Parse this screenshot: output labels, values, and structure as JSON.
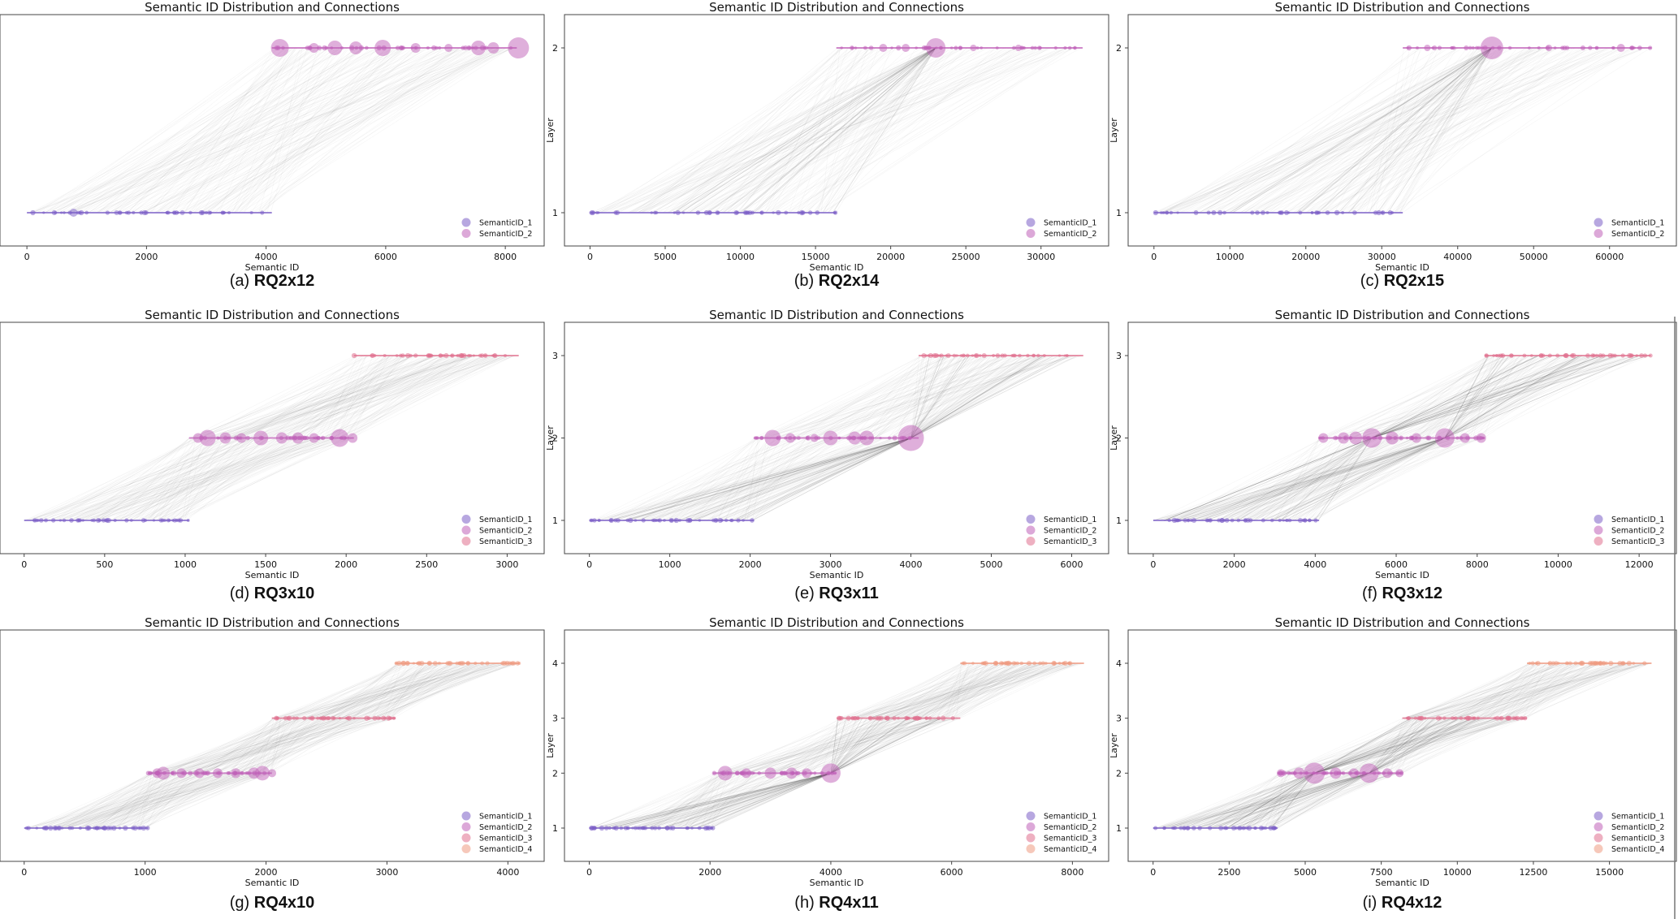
{
  "figure": {
    "colors": {
      "SemanticID_1": "#7b5fc7",
      "SemanticID_2": "#c060b8",
      "SemanticID_3": "#e0708e",
      "SemanticID_4": "#ef9a82",
      "connection": "#333333",
      "axis": "#555555"
    }
  },
  "chart_data": [
    {
      "id": "a",
      "type": "scatter",
      "title": "Semantic ID Distribution and Connections",
      "xlabel": "Semantic ID",
      "ylabel": "",
      "caption_prefix": "(a) ",
      "caption_name": "RQ2x12",
      "layers": 2,
      "show_y_ticks": false,
      "xlim": [
        -450,
        8650
      ],
      "xticks": [
        0,
        2000,
        4000,
        6000,
        8000
      ],
      "xticklabels": [
        "0",
        "2000",
        "4000",
        "6000",
        "8000"
      ],
      "series": [
        {
          "name": "SemanticID_1",
          "layer": 1,
          "range": [
            0,
            4096
          ]
        },
        {
          "name": "SemanticID_2",
          "layer": 2,
          "range": [
            4096,
            8192
          ]
        }
      ],
      "bubbles": [
        {
          "layer": 1,
          "x": 780,
          "r": 5
        },
        {
          "layer": 1,
          "x": 1500,
          "r": 3
        },
        {
          "layer": 1,
          "x": 2600,
          "r": 3
        },
        {
          "layer": 2,
          "x": 4230,
          "r": 11
        },
        {
          "layer": 2,
          "x": 4800,
          "r": 6
        },
        {
          "layer": 2,
          "x": 5150,
          "r": 9
        },
        {
          "layer": 2,
          "x": 5500,
          "r": 8
        },
        {
          "layer": 2,
          "x": 5950,
          "r": 10
        },
        {
          "layer": 2,
          "x": 6500,
          "r": 6
        },
        {
          "layer": 2,
          "x": 7050,
          "r": 5
        },
        {
          "layer": 2,
          "x": 7550,
          "r": 9
        },
        {
          "layer": 2,
          "x": 7800,
          "r": 7
        },
        {
          "layer": 2,
          "x": 8220,
          "r": 13
        }
      ],
      "hubs": [],
      "legend": [
        "SemanticID_1",
        "SemanticID_2"
      ]
    },
    {
      "id": "b",
      "type": "scatter",
      "title": "Semantic ID Distribution and Connections",
      "xlabel": "Semantic ID",
      "ylabel": "Layer",
      "caption_prefix": "(b) ",
      "caption_name": "RQ2x14",
      "layers": 2,
      "show_y_ticks": true,
      "yticks": [
        "1",
        "2"
      ],
      "xlim": [
        -1700,
        34500
      ],
      "xticks": [
        0,
        5000,
        10000,
        15000,
        20000,
        25000,
        30000
      ],
      "xticklabels": [
        "0",
        "5000",
        "10000",
        "15000",
        "20000",
        "25000",
        "30000"
      ],
      "series": [
        {
          "name": "SemanticID_1",
          "layer": 1,
          "range": [
            0,
            16384
          ]
        },
        {
          "name": "SemanticID_2",
          "layer": 2,
          "range": [
            16384,
            32768
          ]
        }
      ],
      "bubbles": [
        {
          "layer": 2,
          "x": 19500,
          "r": 5
        },
        {
          "layer": 2,
          "x": 21000,
          "r": 5
        },
        {
          "layer": 2,
          "x": 23000,
          "r": 12
        },
        {
          "layer": 2,
          "x": 25500,
          "r": 4
        },
        {
          "layer": 2,
          "x": 28500,
          "r": 4
        }
      ],
      "hubs": [
        {
          "layer": 2,
          "x": 23000
        }
      ],
      "legend": [
        "SemanticID_1",
        "SemanticID_2"
      ]
    },
    {
      "id": "c",
      "type": "scatter",
      "title": "Semantic ID Distribution and Connections",
      "xlabel": "Semantic ID",
      "ylabel": "Layer",
      "caption_prefix": "(c) ",
      "caption_name": "RQ2x15",
      "layers": 2,
      "show_y_ticks": true,
      "yticks": [
        "1",
        "2"
      ],
      "xlim": [
        -3400,
        68800
      ],
      "xticks": [
        0,
        10000,
        20000,
        30000,
        40000,
        50000,
        60000
      ],
      "xticklabels": [
        "0",
        "10000",
        "20000",
        "30000",
        "40000",
        "50000",
        "60000"
      ],
      "series": [
        {
          "name": "SemanticID_1",
          "layer": 1,
          "range": [
            0,
            32768
          ]
        },
        {
          "name": "SemanticID_2",
          "layer": 2,
          "range": [
            32768,
            65536
          ]
        }
      ],
      "bubbles": [
        {
          "layer": 2,
          "x": 36000,
          "r": 4
        },
        {
          "layer": 2,
          "x": 44500,
          "r": 14
        },
        {
          "layer": 2,
          "x": 52000,
          "r": 4
        },
        {
          "layer": 2,
          "x": 61500,
          "r": 5
        }
      ],
      "hubs": [
        {
          "layer": 2,
          "x": 44500
        }
      ],
      "legend": [
        "SemanticID_1",
        "SemanticID_2"
      ]
    },
    {
      "id": "d",
      "type": "scatter",
      "title": "Semantic ID Distribution and Connections",
      "xlabel": "Semantic ID",
      "ylabel": "",
      "caption_prefix": "(d) ",
      "caption_name": "RQ3x10",
      "layers": 3,
      "show_y_ticks": false,
      "xlim": [
        -150,
        3230
      ],
      "xticks": [
        0,
        500,
        1000,
        1500,
        2000,
        2500,
        3000
      ],
      "xticklabels": [
        "0",
        "500",
        "1000",
        "1500",
        "2000",
        "2500",
        "3000"
      ],
      "series": [
        {
          "name": "SemanticID_1",
          "layer": 1,
          "range": [
            0,
            1024
          ]
        },
        {
          "name": "SemanticID_2",
          "layer": 2,
          "range": [
            1024,
            2048
          ]
        },
        {
          "name": "SemanticID_3",
          "layer": 3,
          "range": [
            2048,
            3072
          ]
        }
      ],
      "bubbles": [
        {
          "layer": 2,
          "x": 1080,
          "r": 6
        },
        {
          "layer": 2,
          "x": 1140,
          "r": 10
        },
        {
          "layer": 2,
          "x": 1250,
          "r": 7
        },
        {
          "layer": 2,
          "x": 1350,
          "r": 6
        },
        {
          "layer": 2,
          "x": 1470,
          "r": 9
        },
        {
          "layer": 2,
          "x": 1600,
          "r": 7
        },
        {
          "layer": 2,
          "x": 1700,
          "r": 7
        },
        {
          "layer": 2,
          "x": 1800,
          "r": 6
        },
        {
          "layer": 2,
          "x": 1960,
          "r": 11
        },
        {
          "layer": 2,
          "x": 2040,
          "r": 6
        }
      ],
      "hubs": [],
      "legend": [
        "SemanticID_1",
        "SemanticID_2",
        "SemanticID_3"
      ]
    },
    {
      "id": "e",
      "type": "scatter",
      "title": "Semantic ID Distribution and Connections",
      "xlabel": "Semantic ID",
      "ylabel": "Layer",
      "caption_prefix": "(e) ",
      "caption_name": "RQ3x11",
      "layers": 3,
      "show_y_ticks": true,
      "yticks": [
        "1",
        "2",
        "3"
      ],
      "xlim": [
        -310,
        6460
      ],
      "xticks": [
        0,
        1000,
        2000,
        3000,
        4000,
        5000,
        6000
      ],
      "xticklabels": [
        "0",
        "1000",
        "2000",
        "3000",
        "4000",
        "5000",
        "6000"
      ],
      "series": [
        {
          "name": "SemanticID_1",
          "layer": 1,
          "range": [
            0,
            2048
          ]
        },
        {
          "name": "SemanticID_2",
          "layer": 2,
          "range": [
            2048,
            4096
          ]
        },
        {
          "name": "SemanticID_3",
          "layer": 3,
          "range": [
            4096,
            6144
          ]
        }
      ],
      "bubbles": [
        {
          "layer": 2,
          "x": 2280,
          "r": 10
        },
        {
          "layer": 2,
          "x": 2500,
          "r": 6
        },
        {
          "layer": 2,
          "x": 2800,
          "r": 5
        },
        {
          "layer": 2,
          "x": 3000,
          "r": 9
        },
        {
          "layer": 2,
          "x": 3300,
          "r": 8
        },
        {
          "layer": 2,
          "x": 3450,
          "r": 9
        },
        {
          "layer": 2,
          "x": 4000,
          "r": 16
        }
      ],
      "hubs": [
        {
          "layer": 2,
          "x": 4000
        }
      ],
      "legend": [
        "SemanticID_1",
        "SemanticID_2",
        "SemanticID_3"
      ]
    },
    {
      "id": "f",
      "type": "scatter",
      "title": "Semantic ID Distribution and Connections",
      "xlabel": "Semantic ID",
      "ylabel": "Layer",
      "caption_prefix": "(f) ",
      "caption_name": "RQ3x12",
      "layers": 3,
      "show_y_ticks": true,
      "yticks": [
        "1",
        "2",
        "3"
      ],
      "xlim": [
        -620,
        12920
      ],
      "xticks": [
        0,
        2000,
        4000,
        6000,
        8000,
        10000,
        12000
      ],
      "xticklabels": [
        "0",
        "2000",
        "4000",
        "6000",
        "8000",
        "10000",
        "12000"
      ],
      "series": [
        {
          "name": "SemanticID_1",
          "layer": 1,
          "range": [
            0,
            4096
          ]
        },
        {
          "name": "SemanticID_2",
          "layer": 2,
          "range": [
            4096,
            8192
          ]
        },
        {
          "name": "SemanticID_3",
          "layer": 3,
          "range": [
            8192,
            12288
          ]
        }
      ],
      "bubbles": [
        {
          "layer": 2,
          "x": 4200,
          "r": 6
        },
        {
          "layer": 2,
          "x": 4700,
          "r": 7
        },
        {
          "layer": 2,
          "x": 5000,
          "r": 8
        },
        {
          "layer": 2,
          "x": 5400,
          "r": 12
        },
        {
          "layer": 2,
          "x": 5900,
          "r": 8
        },
        {
          "layer": 2,
          "x": 6500,
          "r": 6
        },
        {
          "layer": 2,
          "x": 7200,
          "r": 12
        },
        {
          "layer": 2,
          "x": 7700,
          "r": 6
        },
        {
          "layer": 2,
          "x": 8100,
          "r": 6
        }
      ],
      "hubs": [
        {
          "layer": 2,
          "x": 5400
        },
        {
          "layer": 2,
          "x": 7200
        }
      ],
      "legend": [
        "SemanticID_1",
        "SemanticID_2",
        "SemanticID_3"
      ]
    },
    {
      "id": "g",
      "type": "scatter",
      "title": "Semantic ID Distribution and Connections",
      "xlabel": "Semantic ID",
      "ylabel": "",
      "caption_prefix": "(g) ",
      "caption_name": "RQ4x10",
      "layers": 4,
      "show_y_ticks": false,
      "xlim": [
        -200,
        4300
      ],
      "xticks": [
        0,
        1000,
        2000,
        3000,
        4000
      ],
      "xticklabels": [
        "0",
        "1000",
        "2000",
        "3000",
        "4000"
      ],
      "series": [
        {
          "name": "SemanticID_1",
          "layer": 1,
          "range": [
            0,
            1024
          ]
        },
        {
          "name": "SemanticID_2",
          "layer": 2,
          "range": [
            1024,
            2048
          ]
        },
        {
          "name": "SemanticID_3",
          "layer": 3,
          "range": [
            2048,
            3072
          ]
        },
        {
          "name": "SemanticID_4",
          "layer": 4,
          "range": [
            3072,
            4096
          ]
        }
      ],
      "bubbles": [
        {
          "layer": 2,
          "x": 1100,
          "r": 6
        },
        {
          "layer": 2,
          "x": 1150,
          "r": 8
        },
        {
          "layer": 2,
          "x": 1300,
          "r": 6
        },
        {
          "layer": 2,
          "x": 1450,
          "r": 6
        },
        {
          "layer": 2,
          "x": 1600,
          "r": 6
        },
        {
          "layer": 2,
          "x": 1750,
          "r": 6
        },
        {
          "layer": 2,
          "x": 1900,
          "r": 7
        },
        {
          "layer": 2,
          "x": 1970,
          "r": 9
        },
        {
          "layer": 2,
          "x": 2050,
          "r": 5
        }
      ],
      "hubs": [],
      "legend": [
        "SemanticID_1",
        "SemanticID_2",
        "SemanticID_3",
        "SemanticID_4"
      ]
    },
    {
      "id": "h",
      "type": "scatter",
      "title": "Semantic ID Distribution and Connections",
      "xlabel": "Semantic ID",
      "ylabel": "Layer",
      "caption_prefix": "(h) ",
      "caption_name": "RQ4x11",
      "layers": 4,
      "show_y_ticks": true,
      "yticks": [
        "1",
        "2",
        "3",
        "4"
      ],
      "xlim": [
        -410,
        8600
      ],
      "xticks": [
        0,
        2000,
        4000,
        6000,
        8000
      ],
      "xticklabels": [
        "0",
        "2000",
        "4000",
        "6000",
        "8000"
      ],
      "series": [
        {
          "name": "SemanticID_1",
          "layer": 1,
          "range": [
            0,
            2048
          ]
        },
        {
          "name": "SemanticID_2",
          "layer": 2,
          "range": [
            2048,
            4096
          ]
        },
        {
          "name": "SemanticID_3",
          "layer": 3,
          "range": [
            4096,
            6144
          ]
        },
        {
          "name": "SemanticID_4",
          "layer": 4,
          "range": [
            6144,
            8192
          ]
        }
      ],
      "bubbles": [
        {
          "layer": 2,
          "x": 2250,
          "r": 9
        },
        {
          "layer": 2,
          "x": 2600,
          "r": 6
        },
        {
          "layer": 2,
          "x": 3000,
          "r": 7
        },
        {
          "layer": 2,
          "x": 3350,
          "r": 7
        },
        {
          "layer": 2,
          "x": 3600,
          "r": 6
        },
        {
          "layer": 2,
          "x": 4000,
          "r": 12
        }
      ],
      "hubs": [
        {
          "layer": 2,
          "x": 4000
        }
      ],
      "legend": [
        "SemanticID_1",
        "SemanticID_2",
        "SemanticID_3",
        "SemanticID_4"
      ]
    },
    {
      "id": "i",
      "type": "scatter",
      "title": "Semantic ID Distribution and Connections",
      "xlabel": "Semantic ID",
      "ylabel": "Layer",
      "caption_prefix": "(i) ",
      "caption_name": "RQ4x12",
      "layers": 4,
      "show_y_ticks": true,
      "yticks": [
        "1",
        "2",
        "3",
        "4"
      ],
      "xlim": [
        -820,
        17200
      ],
      "xticks": [
        0,
        2500,
        5000,
        7500,
        10000,
        12500,
        15000
      ],
      "xticklabels": [
        "0",
        "2500",
        "5000",
        "7500",
        "10000",
        "12500",
        "15000"
      ],
      "series": [
        {
          "name": "SemanticID_1",
          "layer": 1,
          "range": [
            0,
            4096
          ]
        },
        {
          "name": "SemanticID_2",
          "layer": 2,
          "range": [
            4096,
            8192
          ]
        },
        {
          "name": "SemanticID_3",
          "layer": 3,
          "range": [
            8192,
            12288
          ]
        },
        {
          "name": "SemanticID_4",
          "layer": 4,
          "range": [
            12288,
            16384
          ]
        }
      ],
      "bubbles": [
        {
          "layer": 2,
          "x": 4200,
          "r": 5
        },
        {
          "layer": 2,
          "x": 4800,
          "r": 7
        },
        {
          "layer": 2,
          "x": 5300,
          "r": 13
        },
        {
          "layer": 2,
          "x": 6000,
          "r": 7
        },
        {
          "layer": 2,
          "x": 6600,
          "r": 6
        },
        {
          "layer": 2,
          "x": 7100,
          "r": 12
        },
        {
          "layer": 2,
          "x": 7700,
          "r": 6
        },
        {
          "layer": 2,
          "x": 8100,
          "r": 5
        }
      ],
      "hubs": [
        {
          "layer": 2,
          "x": 5300
        },
        {
          "layer": 2,
          "x": 7100
        }
      ],
      "legend": [
        "SemanticID_1",
        "SemanticID_2",
        "SemanticID_3",
        "SemanticID_4"
      ]
    }
  ]
}
